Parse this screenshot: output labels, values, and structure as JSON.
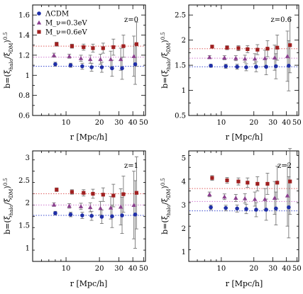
{
  "chart_data": [
    {
      "type": "scatter",
      "annotation": "z=0",
      "xlabel": "r [Mpc/h]",
      "ylabel": "b=(ξ_halo/ξ_DM)^0.5",
      "x_scale": "log",
      "xlim": [
        5,
        52
      ],
      "ylim": [
        0.6,
        1.7
      ],
      "x_ticks": [
        10,
        20,
        30,
        40,
        50
      ],
      "y_ticks": [
        0.6,
        0.8,
        1,
        1.2,
        1.4,
        1.6
      ],
      "x_tick_labels": [
        "10",
        "20",
        "30",
        "40",
        "50"
      ],
      "y_tick_labels": [
        "0.6",
        "0.8",
        "1",
        "1.2",
        "1.4",
        "1.6"
      ],
      "legend": [
        {
          "label": "ΛCDM",
          "marker": "circle",
          "color": "#1f2fa8"
        },
        {
          "label": "M_ν=0.3eV",
          "marker": "triangle",
          "color": "#8b3f8f"
        },
        {
          "label": "M_ν=0.6eV",
          "marker": "square",
          "color": "#a02020"
        }
      ],
      "reference_lines": [
        1.09,
        1.18,
        1.29
      ],
      "series": [
        {
          "name": "ΛCDM",
          "marker": "circle",
          "color": "#1f2fa8",
          "x": [
            8,
            11,
            14,
            17,
            21,
            26,
            32,
            42
          ],
          "y": [
            1.11,
            1.1,
            1.09,
            1.08,
            1.08,
            1.07,
            1.07,
            1.11
          ],
          "err": [
            0.02,
            0.02,
            0.03,
            0.04,
            0.05,
            0.08,
            0.11,
            0.2
          ]
        },
        {
          "name": "M_ν=0.3eV",
          "marker": "triangle",
          "color": "#8b3f8f",
          "x": [
            8,
            11,
            14,
            17,
            21,
            26,
            32,
            42
          ],
          "y": [
            1.2,
            1.19,
            1.17,
            1.16,
            1.16,
            1.16,
            1.16,
            1.19
          ],
          "err": [
            0.02,
            0.02,
            0.03,
            0.04,
            0.05,
            0.08,
            0.11,
            0.2
          ]
        },
        {
          "name": "M_ν=0.6eV",
          "marker": "square",
          "color": "#a02020",
          "x": [
            8,
            11,
            14,
            17,
            21,
            26,
            32,
            42
          ],
          "y": [
            1.31,
            1.29,
            1.28,
            1.27,
            1.27,
            1.28,
            1.29,
            1.31
          ],
          "err": [
            0.02,
            0.02,
            0.03,
            0.04,
            0.05,
            0.08,
            0.11,
            0.22
          ]
        }
      ]
    },
    {
      "type": "scatter",
      "annotation": "z=0.6",
      "xlabel": "r [Mpc/h]",
      "ylabel": "b=(ξ_halo/ξ_DM)^0.5",
      "x_scale": "log",
      "xlim": [
        5,
        52
      ],
      "ylim": [
        0.5,
        2.7
      ],
      "x_ticks": [
        10,
        20,
        30,
        40,
        50
      ],
      "y_ticks": [
        0.5,
        1,
        1.5,
        2,
        2.5
      ],
      "x_tick_labels": [
        "10",
        "20",
        "30",
        "40",
        "50"
      ],
      "y_tick_labels": [
        "0.5",
        "1",
        "1.5",
        "2",
        "2.5"
      ],
      "reference_lines": [
        1.47,
        1.64,
        1.83
      ],
      "series": [
        {
          "name": "ΛCDM",
          "marker": "circle",
          "color": "#1f2fa8",
          "x": [
            8,
            11,
            14,
            17,
            21,
            26,
            32,
            42
          ],
          "y": [
            1.49,
            1.48,
            1.47,
            1.46,
            1.47,
            1.47,
            1.48,
            1.49
          ],
          "err": [
            0.03,
            0.04,
            0.05,
            0.07,
            0.1,
            0.16,
            0.25,
            0.5
          ]
        },
        {
          "name": "M_ν=0.3eV",
          "marker": "triangle",
          "color": "#8b3f8f",
          "x": [
            8,
            11,
            14,
            17,
            21,
            26,
            32,
            42
          ],
          "y": [
            1.66,
            1.65,
            1.64,
            1.63,
            1.63,
            1.64,
            1.65,
            1.68
          ],
          "err": [
            0.03,
            0.04,
            0.05,
            0.07,
            0.1,
            0.16,
            0.25,
            0.5
          ]
        },
        {
          "name": "M_ν=0.6eV",
          "marker": "square",
          "color": "#a02020",
          "x": [
            8,
            11,
            14,
            17,
            21,
            26,
            32,
            42
          ],
          "y": [
            1.87,
            1.85,
            1.84,
            1.82,
            1.81,
            1.83,
            1.85,
            1.9
          ],
          "err": [
            0.03,
            0.04,
            0.05,
            0.07,
            0.1,
            0.16,
            0.25,
            0.55
          ]
        }
      ]
    },
    {
      "type": "scatter",
      "annotation": "z=1",
      "xlabel": "r [Mpc/h]",
      "ylabel": "b=(ξ_halo/ξ_DM)^0.5",
      "x_scale": "log",
      "xlim": [
        5,
        52
      ],
      "ylim": [
        0.7,
        3.15
      ],
      "x_ticks": [
        10,
        20,
        30,
        40,
        50
      ],
      "y_ticks": [
        1,
        1.5,
        2,
        2.5,
        3
      ],
      "x_tick_labels": [
        "10",
        "20",
        "30",
        "40",
        "50"
      ],
      "y_tick_labels": [
        "1",
        "1.5",
        "2",
        "2.5",
        "3"
      ],
      "reference_lines": [
        1.72,
        1.95,
        2.2
      ],
      "series": [
        {
          "name": "ΛCDM",
          "marker": "circle",
          "color": "#1f2fa8",
          "x": [
            8,
            11,
            14,
            17,
            21,
            26,
            32,
            42
          ],
          "y": [
            1.77,
            1.74,
            1.72,
            1.71,
            1.69,
            1.7,
            1.72,
            1.74
          ],
          "err": [
            0.04,
            0.05,
            0.07,
            0.1,
            0.15,
            0.25,
            0.4,
            0.75
          ]
        },
        {
          "name": "M_ν=0.3eV",
          "marker": "triangle",
          "color": "#8b3f8f",
          "x": [
            8,
            11,
            14,
            17,
            21,
            26,
            32,
            42
          ],
          "y": [
            1.96,
            1.93,
            1.92,
            1.9,
            1.88,
            1.89,
            1.91,
            1.95
          ],
          "err": [
            0.04,
            0.05,
            0.07,
            0.1,
            0.15,
            0.25,
            0.4,
            0.75
          ]
        },
        {
          "name": "M_ν=0.6eV",
          "marker": "square",
          "color": "#a02020",
          "x": [
            8,
            11,
            14,
            17,
            21,
            26,
            32,
            42
          ],
          "y": [
            2.29,
            2.24,
            2.22,
            2.2,
            2.18,
            2.16,
            2.19,
            2.22
          ],
          "err": [
            0.04,
            0.05,
            0.07,
            0.1,
            0.15,
            0.25,
            0.4,
            0.8
          ]
        }
      ]
    },
    {
      "type": "scatter",
      "annotation": "z=2",
      "xlabel": "r [Mpc/h]",
      "ylabel": "b=(ξ_halo/ξ_DM)^0.5",
      "x_scale": "log",
      "xlim": [
        5,
        52
      ],
      "ylim": [
        0.6,
        5.3
      ],
      "x_ticks": [
        10,
        20,
        30,
        40,
        50
      ],
      "y_ticks": [
        1,
        2,
        3,
        4,
        5
      ],
      "x_tick_labels": [
        "10",
        "20",
        "30",
        "40",
        "50"
      ],
      "y_tick_labels": [
        "1",
        "2",
        "3",
        "4",
        "5"
      ],
      "reference_lines": [
        2.75,
        3.15,
        3.7
      ],
      "series": [
        {
          "name": "ΛCDM",
          "marker": "circle",
          "color": "#1f2fa8",
          "x": [
            8,
            11,
            14,
            17,
            21,
            26,
            32,
            42
          ],
          "y": [
            2.9,
            2.87,
            2.85,
            2.83,
            2.8,
            2.8,
            2.85,
            2.9
          ],
          "err": [
            0.1,
            0.12,
            0.15,
            0.2,
            0.3,
            0.45,
            0.7,
            1.3
          ]
        },
        {
          "name": "M_ν=0.3eV",
          "marker": "triangle",
          "color": "#8b3f8f",
          "x": [
            8,
            11,
            14,
            17,
            21,
            26,
            32,
            42
          ],
          "y": [
            3.45,
            3.35,
            3.3,
            3.28,
            3.25,
            3.25,
            3.3,
            3.4
          ],
          "err": [
            0.1,
            0.12,
            0.15,
            0.2,
            0.3,
            0.45,
            0.7,
            1.3
          ]
        },
        {
          "name": "M_ν=0.6eV",
          "marker": "square",
          "color": "#a02020",
          "x": [
            8,
            11,
            14,
            17,
            21,
            26,
            32,
            42
          ],
          "y": [
            4.15,
            4.05,
            4.0,
            3.95,
            3.9,
            3.9,
            3.95,
            4.0
          ],
          "err": [
            0.1,
            0.12,
            0.15,
            0.2,
            0.3,
            0.45,
            0.7,
            1.4
          ]
        }
      ]
    }
  ]
}
